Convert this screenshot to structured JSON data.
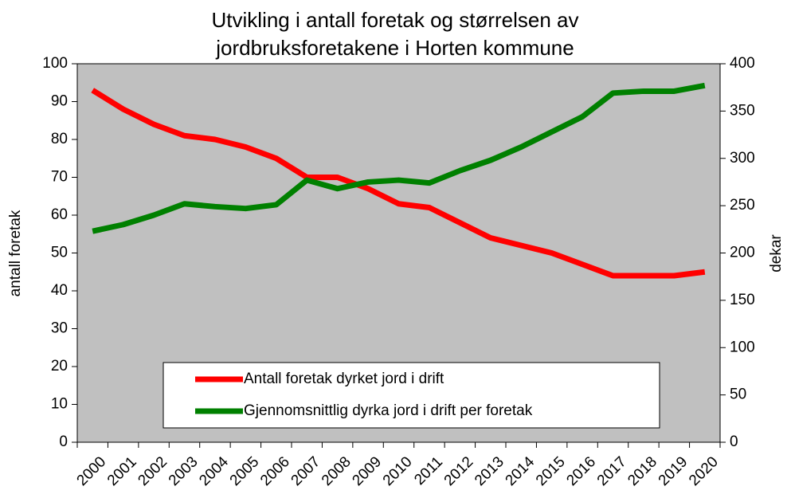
{
  "chart_data": {
    "type": "line",
    "title": [
      "Utvikling i antall foretak og størrelsen av",
      "jordbruksforetakene i Horten kommune"
    ],
    "ylabel": "antall foretak",
    "y2label": "dekar",
    "categories": [
      "2000",
      "2001",
      "2002",
      "2003",
      "2004",
      "2005",
      "2006",
      "2007",
      "2008",
      "2009",
      "2010",
      "2011",
      "2012",
      "2013",
      "2014",
      "2015",
      "2016",
      "2017",
      "2018",
      "2019",
      "2020"
    ],
    "series": [
      {
        "name": "Antall foretak dyrket jord i drift",
        "color": "#ff0000",
        "axis": "y",
        "values": [
          93,
          88,
          84,
          81,
          80,
          78,
          75,
          70,
          70,
          67,
          63,
          62,
          58,
          54,
          52,
          50,
          47,
          44,
          44,
          44,
          45
        ]
      },
      {
        "name": "Gjennomsnittlig dyrka jord i drift per foretak",
        "color": "#008000",
        "axis": "y2",
        "values": [
          223,
          230,
          240,
          252,
          249,
          247,
          251,
          277,
          268,
          275,
          277,
          274,
          287,
          298,
          312,
          328,
          344,
          369,
          371,
          371,
          377
        ]
      }
    ],
    "ylim": [
      0,
      100
    ],
    "yticks": [
      0,
      10,
      20,
      30,
      40,
      50,
      60,
      70,
      80,
      90,
      100
    ],
    "y2lim": [
      0,
      400
    ],
    "y2ticks": [
      0,
      50,
      100,
      150,
      200,
      250,
      300,
      350,
      400
    ],
    "plot_background": "#c0c0c0",
    "grid": false
  }
}
